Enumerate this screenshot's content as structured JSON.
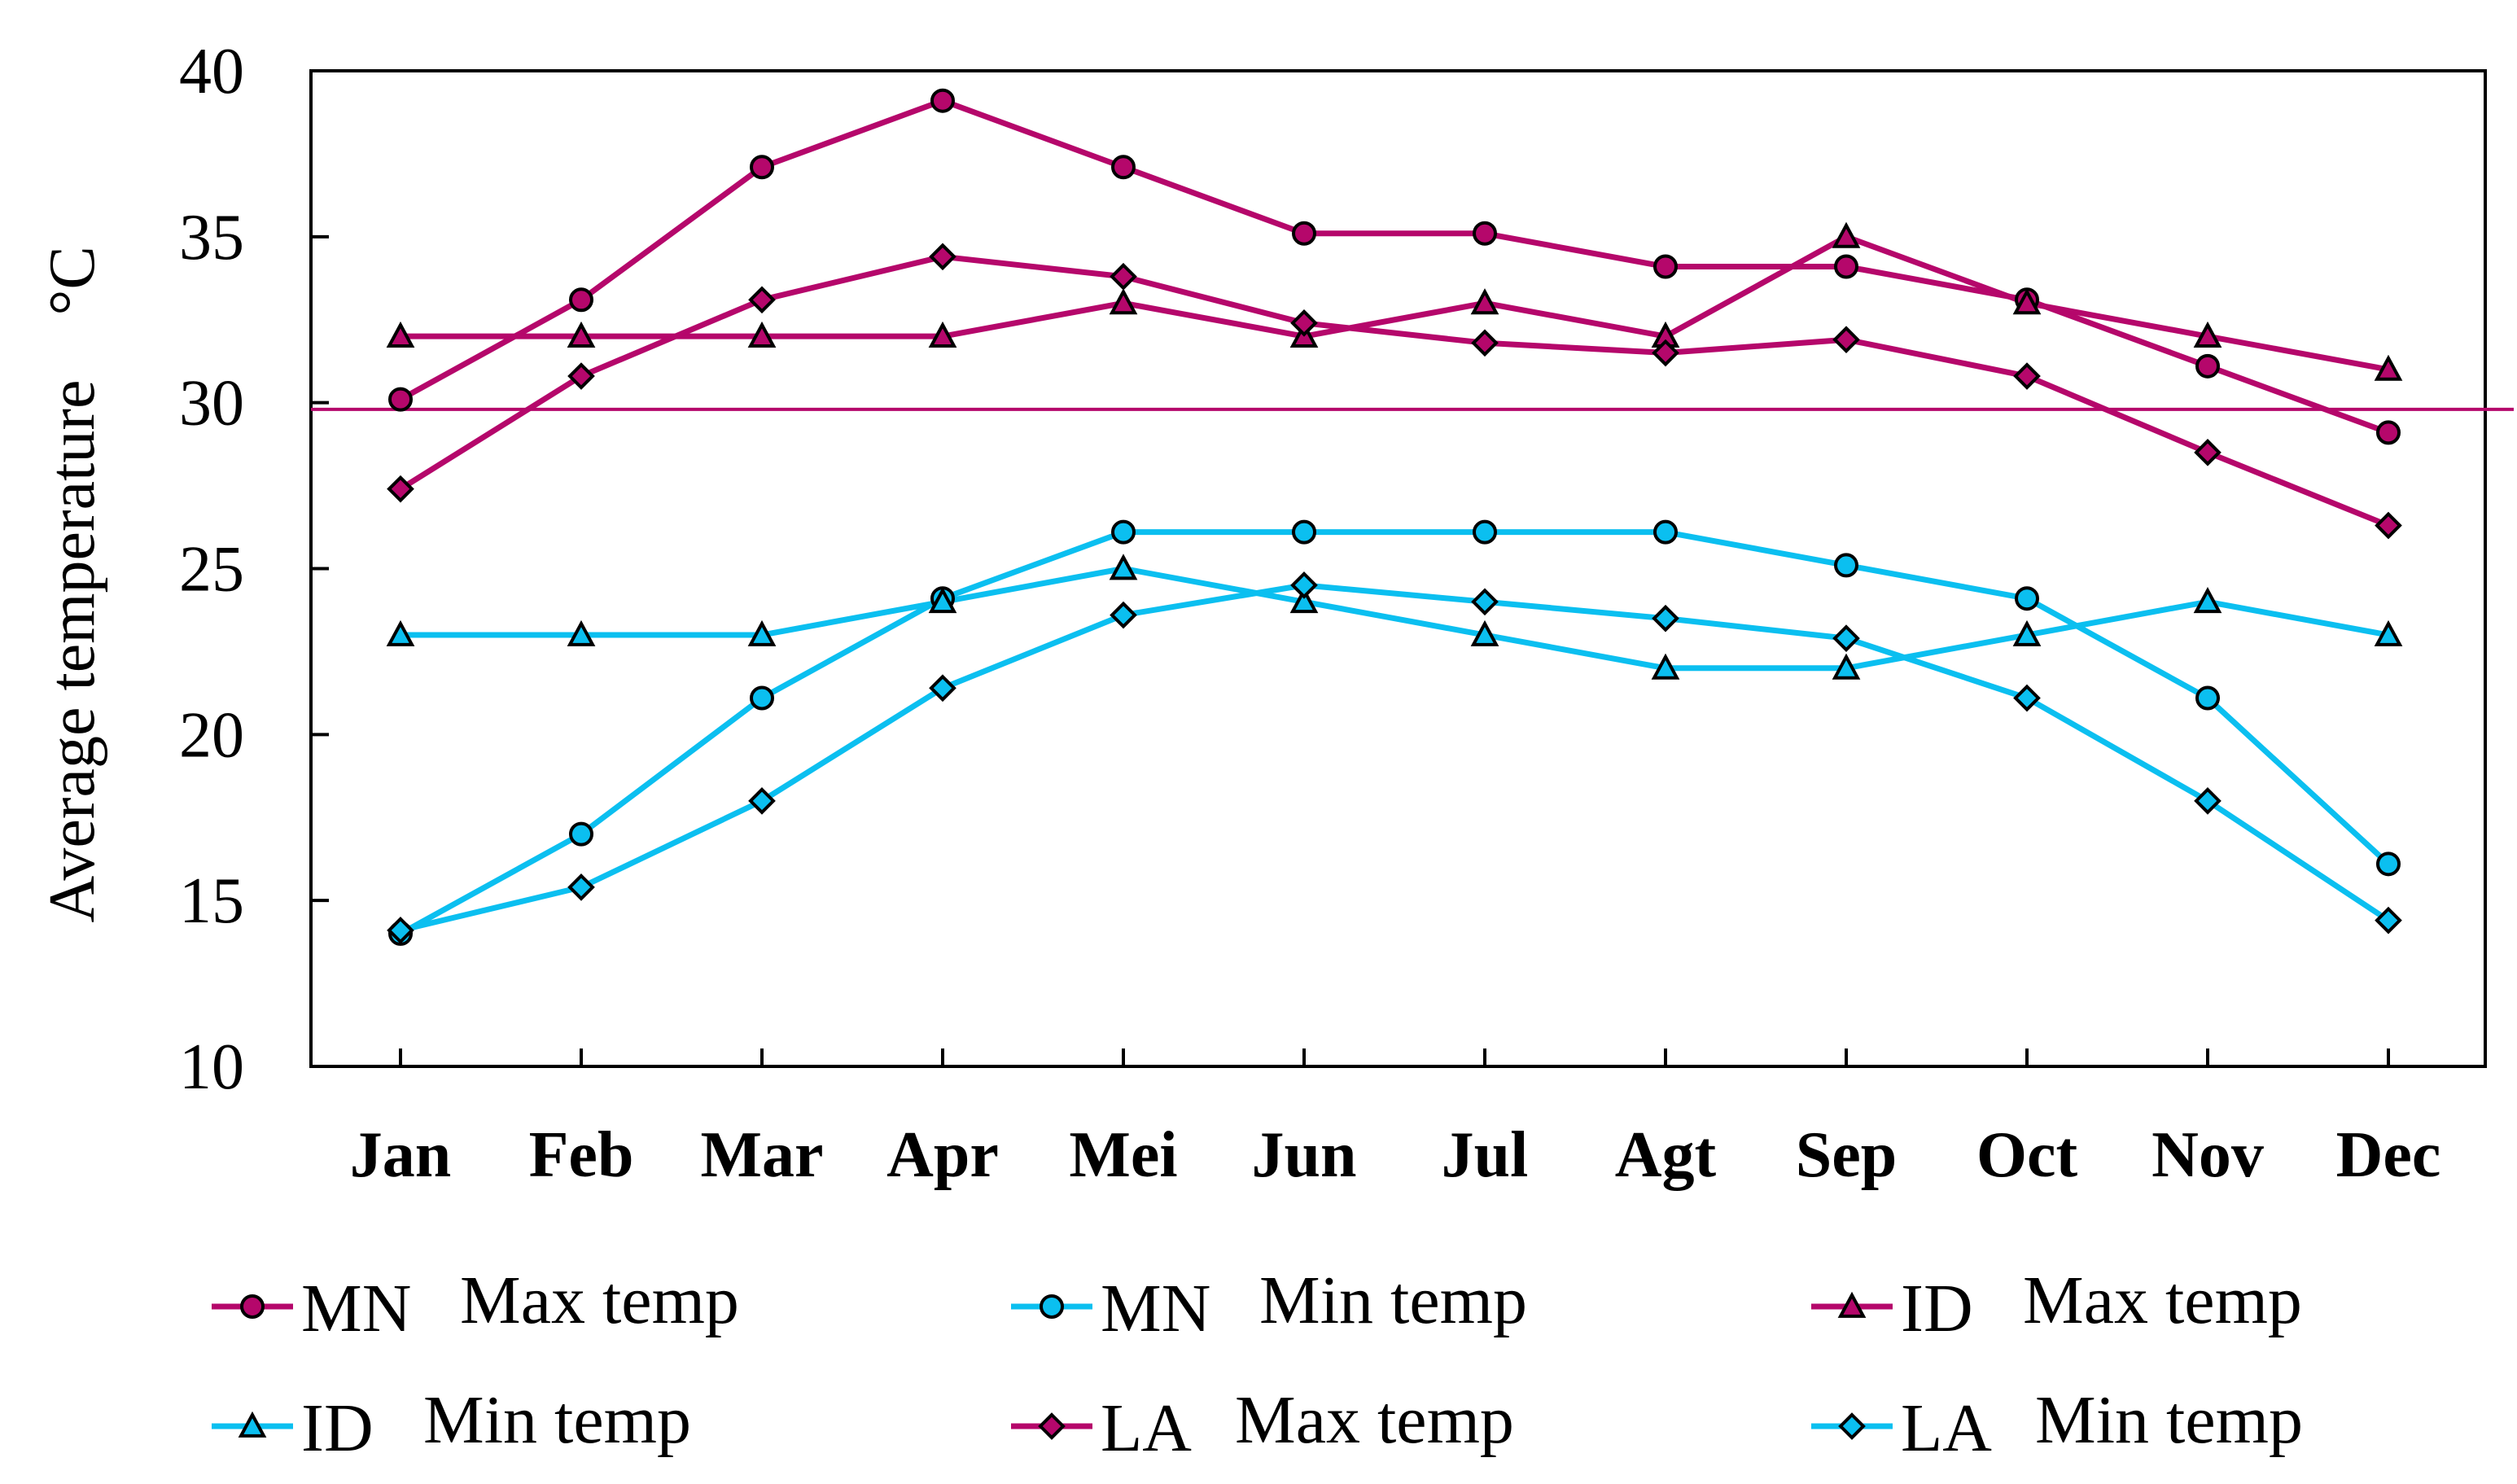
{
  "chart_data": {
    "type": "line",
    "title": "",
    "xlabel": "",
    "ylabel": "Average temperature",
    "yunit": "°C",
    "ylim": [
      10,
      40
    ],
    "yticks": [
      10,
      15,
      20,
      25,
      30,
      35,
      40
    ],
    "categories": [
      "Jan",
      "Feb",
      "Mar",
      "Apr",
      "Mei",
      "Jun",
      "Jul",
      "Agt",
      "Sep",
      "Oct",
      "Nov",
      "Dec"
    ],
    "reference_line": {
      "y": 29.8,
      "color": "#B5076B"
    },
    "grid": false,
    "legend_position": "bottom",
    "colors": {
      "max": "#B5076B",
      "min": "#0BBFF0"
    },
    "series": [
      {
        "name": "MN Max temp",
        "region": "MN",
        "label": "Max temp",
        "color": "#B5076B",
        "marker": "circle",
        "values": [
          30.1,
          33.1,
          37.1,
          39.1,
          37.1,
          35.1,
          35.1,
          34.1,
          34.1,
          33.1,
          31.1,
          29.1
        ]
      },
      {
        "name": "MN Min temp",
        "region": "MN",
        "label": "Min temp",
        "color": "#0BBFF0",
        "marker": "circle",
        "values": [
          14.0,
          17.0,
          21.1,
          24.1,
          26.1,
          26.1,
          26.1,
          26.1,
          25.1,
          24.1,
          21.1,
          16.1
        ]
      },
      {
        "name": "ID Max temp",
        "region": "ID",
        "label": "Max temp",
        "color": "#B5076B",
        "marker": "triangle",
        "values": [
          32,
          32,
          32,
          32,
          33,
          32,
          33,
          32,
          35,
          33,
          32,
          31
        ]
      },
      {
        "name": "ID Min temp",
        "region": "ID",
        "label": "Min temp",
        "color": "#0BBFF0",
        "marker": "triangle",
        "values": [
          23,
          23,
          23,
          24,
          25,
          24,
          23,
          22,
          22,
          23,
          24,
          23
        ]
      },
      {
        "name": "LA Max temp",
        "region": "LA",
        "label": "Max temp",
        "color": "#B5076B",
        "marker": "diamond",
        "values": [
          27.4,
          30.8,
          33.1,
          34.4,
          33.8,
          32.4,
          31.8,
          31.5,
          31.9,
          30.8,
          28.5,
          26.3
        ]
      },
      {
        "name": "LA Min temp",
        "region": "LA",
        "label": "Min temp",
        "color": "#0BBFF0",
        "marker": "diamond",
        "values": [
          14.1,
          15.4,
          18.0,
          21.4,
          23.6,
          24.5,
          24.0,
          23.5,
          22.9,
          21.1,
          18.0,
          14.4
        ]
      }
    ]
  }
}
